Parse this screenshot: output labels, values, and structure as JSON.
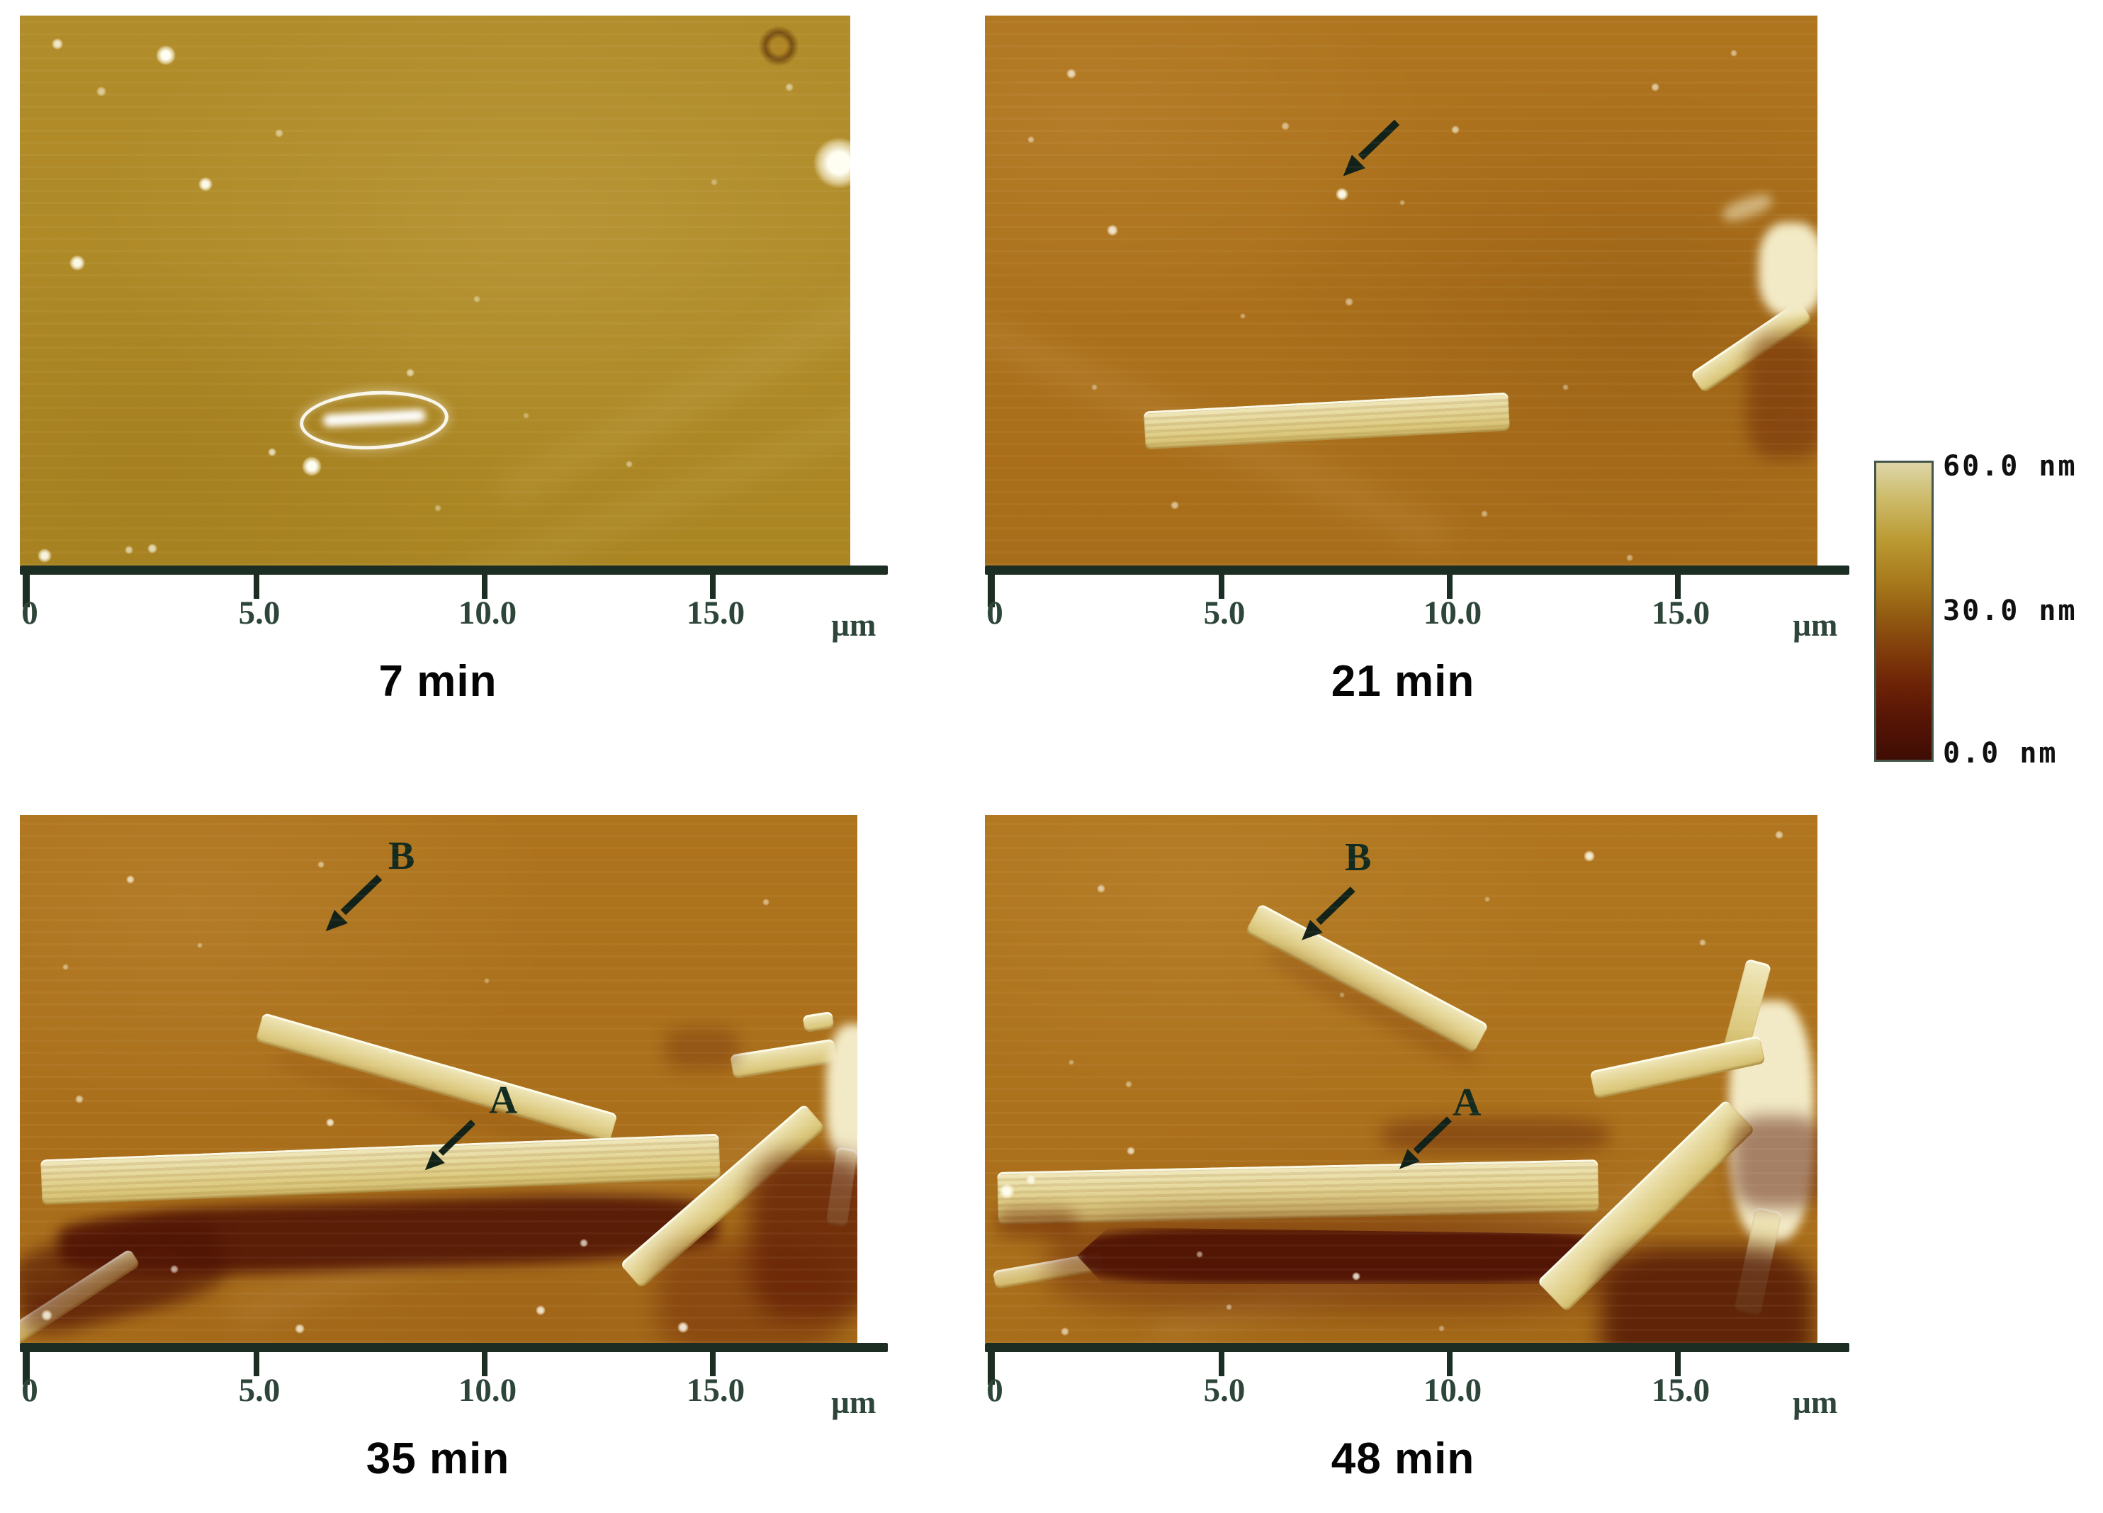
{
  "axis": {
    "tick_labels": [
      "0",
      "5.0",
      "10.0",
      "15.0"
    ],
    "unit_label": "µm"
  },
  "colorbar": {
    "labels": [
      "60.0 nm",
      "30.0 nm",
      "0.0 nm"
    ],
    "max_value_nm": 60.0,
    "mid_value_nm": 30.0,
    "min_value_nm": 0.0,
    "gradient_top_color": "#ddd6a8",
    "gradient_bottom_color": "#3f0d04"
  },
  "panels": [
    {
      "caption": "7 min",
      "annotations": []
    },
    {
      "caption": "21 min",
      "annotations": [
        {
          "icon": "arrow-down-left",
          "text": ""
        }
      ]
    },
    {
      "caption": "35 min",
      "annotations": [
        {
          "icon": "arrow-down-left",
          "text": "B"
        },
        {
          "icon": "arrow-down-left",
          "text": "A"
        }
      ]
    },
    {
      "caption": "48 min",
      "annotations": [
        {
          "icon": "arrow-down-left",
          "text": "B"
        },
        {
          "icon": "arrow-down-left",
          "text": "A"
        }
      ]
    }
  ],
  "colors": {
    "surface_gold": "#b18c2a",
    "surface_amber": "#ad721c",
    "crystal_cream": "#e9dda4",
    "shadow_maroon": "#4e1204",
    "axis_ink": "#1c2d23"
  }
}
